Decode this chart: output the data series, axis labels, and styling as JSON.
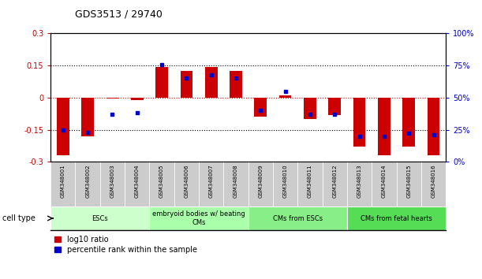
{
  "title": "GDS3513 / 29740",
  "samples": [
    "GSM348001",
    "GSM348002",
    "GSM348003",
    "GSM348004",
    "GSM348005",
    "GSM348006",
    "GSM348007",
    "GSM348008",
    "GSM348009",
    "GSM348010",
    "GSM348011",
    "GSM348012",
    "GSM348013",
    "GSM348014",
    "GSM348015",
    "GSM348016"
  ],
  "log10_ratio": [
    -0.27,
    -0.18,
    -0.005,
    -0.01,
    0.145,
    0.125,
    0.143,
    0.125,
    -0.09,
    0.01,
    -0.1,
    -0.08,
    -0.23,
    -0.27,
    -0.23,
    -0.27
  ],
  "percentile_rank": [
    25,
    23,
    37,
    38,
    76,
    65,
    68,
    65,
    40,
    55,
    37,
    37,
    20,
    20,
    22,
    21
  ],
  "bar_color": "#cc0000",
  "dot_color": "#0000cc",
  "ylim": [
    -0.3,
    0.3
  ],
  "y2lim": [
    0,
    100
  ],
  "yticks": [
    -0.3,
    -0.15,
    0,
    0.15,
    0.3
  ],
  "y2ticks": [
    0,
    25,
    50,
    75,
    100
  ],
  "ytick_labels": [
    "-0.3",
    "-0.15",
    "0",
    "0.15",
    "0.3"
  ],
  "y2tick_labels": [
    "0%",
    "25%",
    "50%",
    "75%",
    "100%"
  ],
  "cell_type_groups": [
    {
      "label": "ESCs",
      "start": 0,
      "end": 3,
      "color": "#ccffcc"
    },
    {
      "label": "embryoid bodies w/ beating\nCMs",
      "start": 4,
      "end": 7,
      "color": "#aaffaa"
    },
    {
      "label": "CMs from ESCs",
      "start": 8,
      "end": 11,
      "color": "#88ee88"
    },
    {
      "label": "CMs from fetal hearts",
      "start": 12,
      "end": 15,
      "color": "#55dd55"
    }
  ],
  "cell_type_label": "cell type",
  "legend_red": "log10 ratio",
  "legend_blue": "percentile rank within the sample",
  "sample_bg": "#cccccc",
  "plot_bg": "#ffffff"
}
